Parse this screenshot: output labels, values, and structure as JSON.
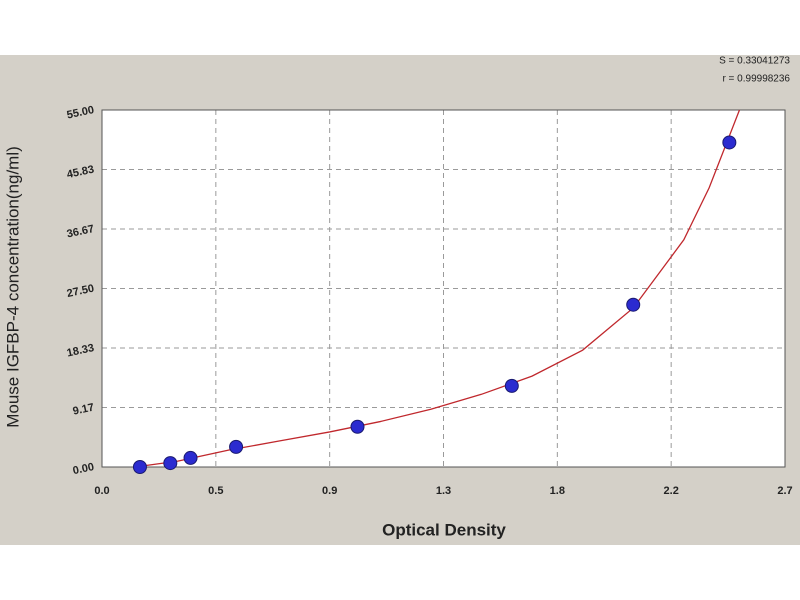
{
  "chart_data": {
    "type": "scatter",
    "xlabel": "Optical Density",
    "ylabel": "Mouse IGFBP-4 concentration(ng/ml)",
    "annotations": [
      "S = 0.33041273",
      "r = 0.99998236"
    ],
    "xlim": [
      0,
      2.7
    ],
    "ylim": [
      0,
      55
    ],
    "xticks": [
      {
        "value": 0,
        "label": "0.0"
      },
      {
        "value": 0.45,
        "label": "0.5"
      },
      0.9,
      {
        "value": 1.35,
        "label": "1.3"
      },
      1.8,
      {
        "value": 2.25,
        "label": "2.2"
      },
      2.7
    ],
    "yticks": [
      {
        "value": 0,
        "label": "0.00"
      },
      9.17,
      18.33,
      {
        "value": 27.5,
        "label": "27.50"
      },
      36.67,
      45.83,
      {
        "value": 55,
        "label": "55.00"
      }
    ],
    "grid": true,
    "background": "#d4d0c8",
    "series": [
      {
        "mode": "line",
        "color": "#c0282d",
        "x": [
          0.13,
          0.3,
          0.5,
          0.7,
          0.9,
          1.1,
          1.3,
          1.5,
          1.7,
          1.9,
          2.1,
          2.3,
          2.4,
          2.52
        ],
        "values": [
          0,
          0.9,
          2.6,
          4.0,
          5.4,
          7.0,
          8.9,
          11.2,
          14.0,
          18.0,
          24.5,
          35.0,
          43.0,
          55.0
        ]
      },
      {
        "mode": "markers",
        "color": "#2b2bd0",
        "x": [
          0.15,
          0.27,
          0.35,
          0.53,
          1.01,
          1.62,
          2.1,
          2.48
        ],
        "values": [
          0,
          0.6,
          1.4,
          3.1,
          6.2,
          12.5,
          25.0,
          50.0
        ]
      }
    ]
  }
}
